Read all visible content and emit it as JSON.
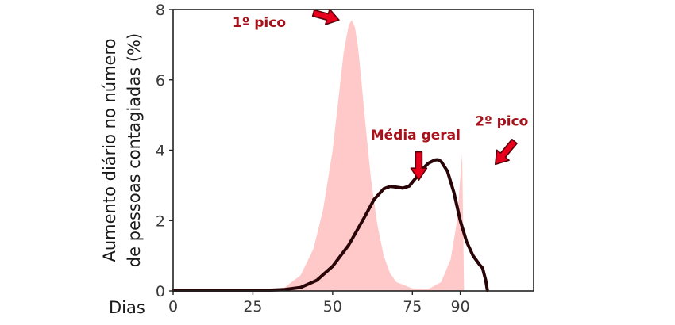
{
  "chart_data": {
    "type": "area",
    "xlabel": "Dias",
    "ylabel": [
      "Aumento diário no número",
      "de pessoas contagiadas (%)"
    ],
    "xlim": [
      0,
      113
    ],
    "ylim": [
      0,
      8
    ],
    "x_ticks": [
      0,
      25,
      50,
      75,
      90
    ],
    "y_ticks": [
      0,
      2,
      4,
      6,
      8
    ],
    "grid": false,
    "series": [
      {
        "kind": "area",
        "color": "#ffc9c9",
        "points": [
          [
            0,
            0
          ],
          [
            25,
            0
          ],
          [
            30,
            0.02
          ],
          [
            35,
            0.1
          ],
          [
            40,
            0.45
          ],
          [
            44,
            1.2
          ],
          [
            47,
            2.3
          ],
          [
            50,
            4.0
          ],
          [
            52,
            5.6
          ],
          [
            53.5,
            6.8
          ],
          [
            55,
            7.55
          ],
          [
            56,
            7.7
          ],
          [
            57,
            7.5
          ],
          [
            58,
            6.9
          ],
          [
            59,
            6.0
          ],
          [
            60,
            5.0
          ],
          [
            62,
            3.2
          ],
          [
            64,
            1.9
          ],
          [
            66,
            1.0
          ],
          [
            68,
            0.5
          ],
          [
            70,
            0.25
          ],
          [
            75,
            0.07
          ],
          [
            80,
            0.05
          ],
          [
            84,
            0.25
          ],
          [
            87,
            0.9
          ],
          [
            89,
            2.0
          ],
          [
            90,
            3.2
          ],
          [
            90.6,
            3.9
          ],
          [
            91.2,
            0.0
          ],
          [
            113,
            0
          ]
        ]
      },
      {
        "kind": "line",
        "color": "#2a0508",
        "points": [
          [
            0,
            0.02
          ],
          [
            30,
            0.02
          ],
          [
            35,
            0.04
          ],
          [
            40,
            0.1
          ],
          [
            45,
            0.3
          ],
          [
            50,
            0.7
          ],
          [
            55,
            1.3
          ],
          [
            60,
            2.1
          ],
          [
            63,
            2.6
          ],
          [
            66,
            2.9
          ],
          [
            68,
            2.97
          ],
          [
            70,
            2.95
          ],
          [
            72,
            2.92
          ],
          [
            74,
            2.98
          ],
          [
            76,
            3.2
          ],
          [
            78,
            3.45
          ],
          [
            80,
            3.63
          ],
          [
            82,
            3.72
          ],
          [
            83,
            3.73
          ],
          [
            84,
            3.68
          ],
          [
            86,
            3.4
          ],
          [
            88,
            2.8
          ],
          [
            90,
            2.0
          ],
          [
            92,
            1.4
          ],
          [
            94,
            1.0
          ],
          [
            96,
            0.75
          ],
          [
            97,
            0.65
          ],
          [
            98,
            0.3
          ],
          [
            98.5,
            0.02
          ]
        ]
      }
    ],
    "annotations": [
      {
        "text": "1º pico",
        "x": 27,
        "y": 7.5,
        "arrow_tail": [
          44,
          7.9
        ],
        "arrow_head": [
          52,
          7.7
        ]
      },
      {
        "text": "Média geral",
        "x": 76,
        "y": 4.3,
        "arrow_tail": [
          77,
          3.95
        ],
        "arrow_head": [
          77,
          3.15
        ]
      },
      {
        "text": "2º pico",
        "x": 103,
        "y": 4.7,
        "arrow_tail": [
          107,
          4.25
        ],
        "arrow_head": [
          101,
          3.6
        ]
      }
    ]
  }
}
